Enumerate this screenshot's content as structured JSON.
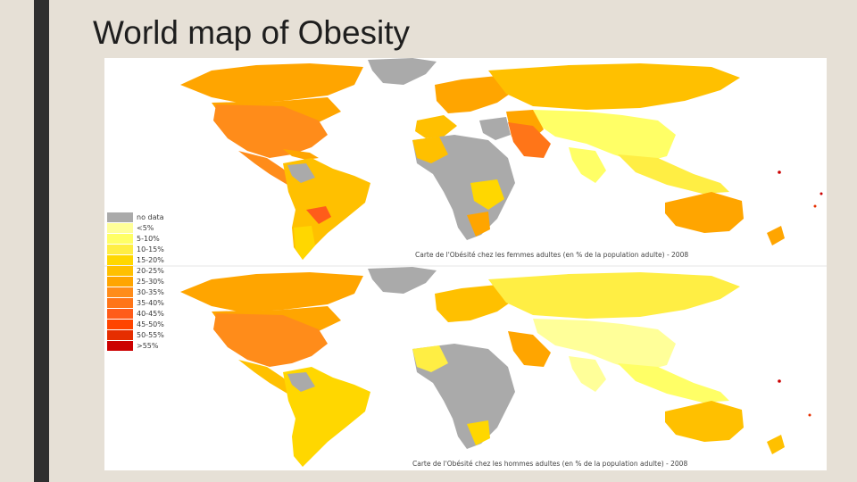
{
  "slide": {
    "title": "World map of Obesity"
  },
  "legend": {
    "items": [
      {
        "label": "no data",
        "color": "#aaaaaa"
      },
      {
        "label": "<5%",
        "color": "#ffff99"
      },
      {
        "label": "5-10%",
        "color": "#ffff66"
      },
      {
        "label": "10-15%",
        "color": "#ffee44"
      },
      {
        "label": "15-20%",
        "color": "#ffd700"
      },
      {
        "label": "20-25%",
        "color": "#ffc000"
      },
      {
        "label": "25-30%",
        "color": "#ffa500"
      },
      {
        "label": "30-35%",
        "color": "#ff8c1a"
      },
      {
        "label": "35-40%",
        "color": "#ff7518"
      },
      {
        "label": "40-45%",
        "color": "#ff5c1a"
      },
      {
        "label": "45-50%",
        "color": "#ff4500"
      },
      {
        "label": "50-55%",
        "color": "#e62e00"
      },
      {
        "label": ">55%",
        "color": "#cc0000"
      }
    ]
  },
  "maps": {
    "women_caption": "Carte de l'Obésité chez les femmes adultes (en % de la population adulte) - 2008",
    "men_caption": "Carte de l'Obésité chez les hommes adultes (en % de la population adulte) - 2008"
  }
}
